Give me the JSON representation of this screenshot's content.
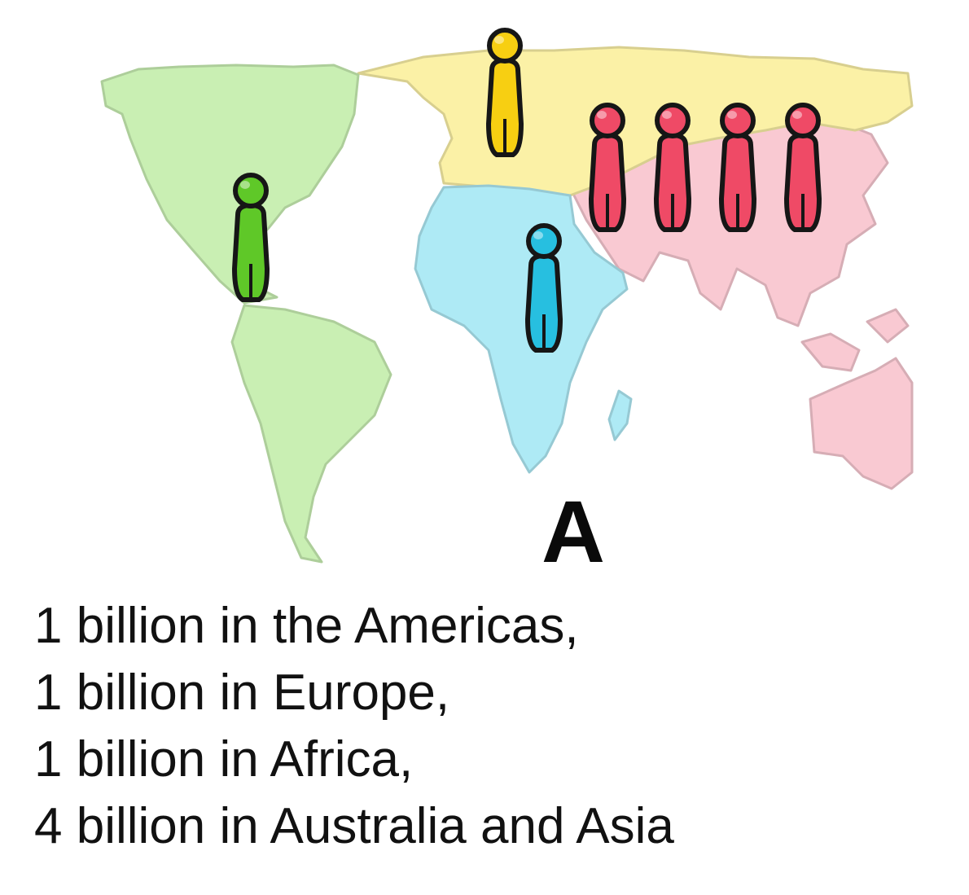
{
  "figure": {
    "panel_label": "A",
    "regions": [
      {
        "name": "Americas",
        "color": "#c9efb3",
        "figure_color": "#5fc828",
        "figures": 1
      },
      {
        "name": "Europe",
        "color": "#fbf1a6",
        "figure_color": "#f7cf12",
        "figures": 1
      },
      {
        "name": "Africa",
        "color": "#aeeaf5",
        "figure_color": "#27bfe0",
        "figures": 1
      },
      {
        "name": "Australia and Asia",
        "color": "#f9c9d2",
        "figure_color": "#ef4a66",
        "figures": 4
      }
    ],
    "caption_lines": [
      "1 billion in the Americas,",
      "1 billion in Europe,",
      "1 billion in Africa,",
      "4 billion in Australia and Asia"
    ]
  }
}
